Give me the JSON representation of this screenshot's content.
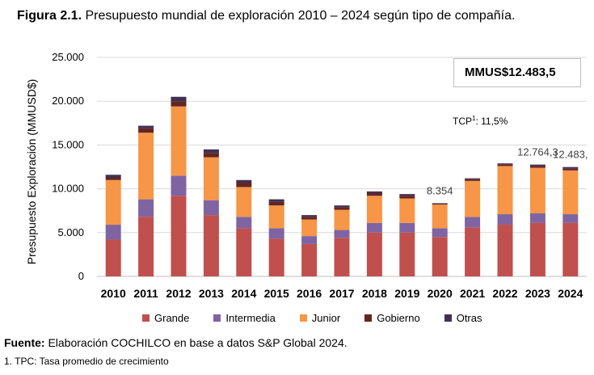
{
  "figure": {
    "label": "Figura 2.1.",
    "title": "Presupuesto mundial de exploración 2010 – 2024 según tipo de compañía."
  },
  "chart_data": {
    "type": "bar",
    "stacked": true,
    "ylabel": "Presupuesto Exploración (MMUSD$)",
    "xlabel": "",
    "ylim": [
      0,
      25000
    ],
    "yticks": [
      "0",
      "5.000",
      "10.000",
      "15.000",
      "20.000",
      "25.000"
    ],
    "ytick_values": [
      0,
      5000,
      10000,
      15000,
      20000,
      25000
    ],
    "categories": [
      "2010",
      "2011",
      "2012",
      "2013",
      "2014",
      "2015",
      "2016",
      "2017",
      "2018",
      "2019",
      "2020",
      "2021",
      "2022",
      "2023",
      "2024"
    ],
    "series": [
      {
        "name": "Grande",
        "color": "#c0504d",
        "values": [
          4200,
          6800,
          9200,
          7000,
          5500,
          4300,
          3700,
          4400,
          5000,
          5000,
          4500,
          5600,
          5900,
          6100,
          6100
        ]
      },
      {
        "name": "Intermedia",
        "color": "#8064a2",
        "values": [
          1700,
          2000,
          2300,
          1700,
          1300,
          1200,
          900,
          900,
          1100,
          1100,
          1000,
          1200,
          1200,
          1100,
          1000
        ]
      },
      {
        "name": "Junior",
        "color": "#f79646",
        "values": [
          5100,
          7600,
          7900,
          4900,
          3400,
          2600,
          1900,
          2300,
          3100,
          2800,
          2700,
          4100,
          5500,
          5200,
          5000
        ]
      },
      {
        "name": "Gobierno",
        "color": "#632523",
        "values": [
          300,
          500,
          600,
          500,
          500,
          400,
          300,
          300,
          300,
          300,
          100,
          200,
          200,
          200,
          200
        ]
      },
      {
        "name": "Otras",
        "color": "#403152",
        "values": [
          300,
          300,
          500,
          400,
          300,
          300,
          200,
          200,
          200,
          200,
          54,
          100,
          100,
          164,
          183.5
        ]
      }
    ],
    "annotations": [
      {
        "category": "2020",
        "text": "8.354"
      },
      {
        "category": "2023",
        "text": "12.764,3"
      },
      {
        "category": "2024",
        "text": "12.483,"
      }
    ],
    "callout_box": "MMUS$12.483,5",
    "tcp_label": "TCP",
    "tcp_superscript": "1",
    "tcp_value": ": 11,5%",
    "grid": true,
    "legend_position": "bottom"
  },
  "footer": {
    "source_label": "Fuente:",
    "source_text": " Elaboración COCHILCO en base a datos S&P Global 2024.",
    "note": "1. TPC: Tasa promedio de crecimiento"
  }
}
